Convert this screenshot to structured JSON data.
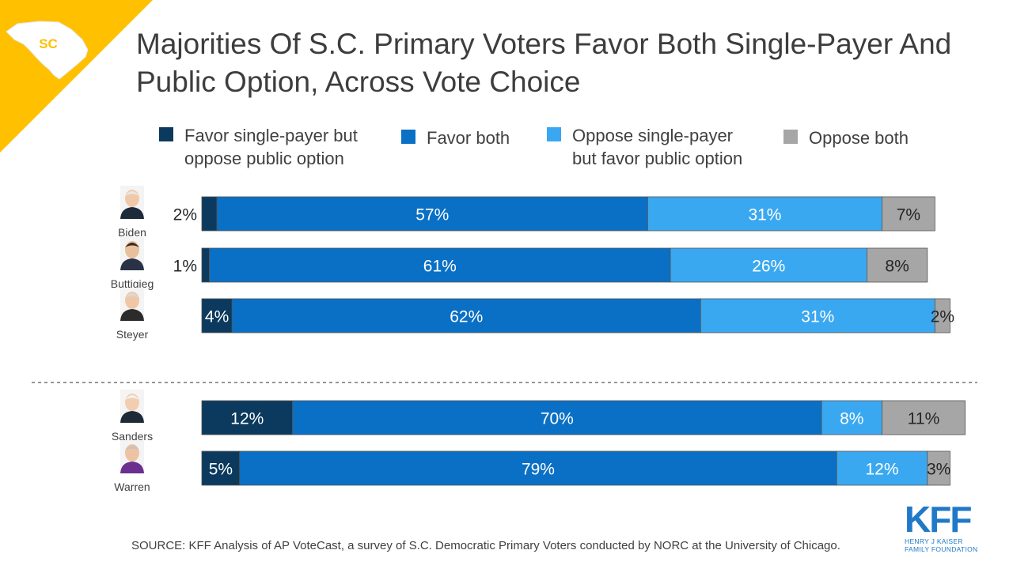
{
  "badge": {
    "text": "SC"
  },
  "title": "Majorities Of S.C. Primary Voters Favor Both Single-Payer And Public Option, Across Vote Choice",
  "legend": [
    {
      "label": "Favor single-payer but\noppose public option",
      "color": "#0b3a5e"
    },
    {
      "label": "Favor both",
      "color": "#0a70c5"
    },
    {
      "label": "Oppose single-payer\nbut favor public option",
      "color": "#3aa8f0"
    },
    {
      "label": "Oppose both",
      "color": "#a6a6a6"
    }
  ],
  "chart_data": {
    "type": "bar",
    "orientation": "horizontal",
    "stacked": true,
    "categories": [
      "Biden",
      "Buttigieg",
      "Steyer",
      "Sanders",
      "Warren"
    ],
    "groups": [
      [
        "Biden",
        "Buttigieg",
        "Steyer"
      ],
      [
        "Sanders",
        "Warren"
      ]
    ],
    "series": [
      {
        "name": "Favor single-payer but oppose public option",
        "values": [
          2,
          1,
          4,
          12,
          5
        ],
        "color": "#0b3a5e"
      },
      {
        "name": "Favor both",
        "values": [
          57,
          61,
          62,
          70,
          79
        ],
        "color": "#0a70c5"
      },
      {
        "name": "Oppose single-payer but favor public option",
        "values": [
          31,
          26,
          31,
          8,
          12
        ],
        "color": "#3aa8f0"
      },
      {
        "name": "Oppose both",
        "values": [
          7,
          8,
          2,
          11,
          3
        ],
        "color": "#a6a6a6"
      }
    ],
    "labels": [
      [
        "2%",
        "57%",
        "31%",
        "7%"
      ],
      [
        "1%",
        "61%",
        "26%",
        "8%"
      ],
      [
        "4%",
        "62%",
        "31%",
        "2%"
      ],
      [
        "12%",
        "70%",
        "8%",
        "11%"
      ],
      [
        "5%",
        "79%",
        "12%",
        "3%"
      ]
    ],
    "xlim": [
      0,
      100
    ],
    "legend_position": "top",
    "grid": false
  },
  "source": "SOURCE: KFF Analysis of AP VoteCast, a survey of S.C. Democratic Primary Voters conducted by NORC at the University of Chicago.",
  "logo": {
    "mark": "KFF",
    "subtitle": "HENRY J KAISER\nFAMILY FOUNDATION"
  }
}
